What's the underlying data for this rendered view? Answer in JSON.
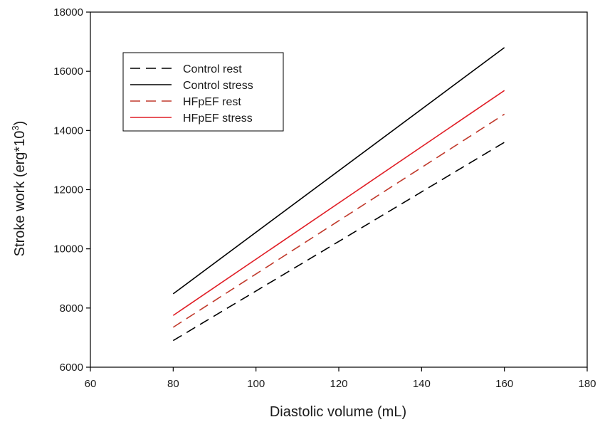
{
  "chart_data": {
    "type": "line",
    "xlabel": "Diastolic volume (mL)",
    "ylabel": "Stroke work (erg*10",
    "ylabel_superscript": "3",
    "ylabel_close": ")",
    "xlim": [
      60,
      180
    ],
    "ylim": [
      6000,
      18000
    ],
    "xticks": [
      60,
      80,
      100,
      120,
      140,
      160,
      180
    ],
    "yticks": [
      6000,
      8000,
      10000,
      12000,
      14000,
      16000,
      18000
    ],
    "grid": false,
    "legend_position": "top-left",
    "series": [
      {
        "name": "Control rest",
        "x": [
          80,
          160
        ],
        "y": [
          6900,
          13600
        ],
        "color": "#000000",
        "dash": "dashed"
      },
      {
        "name": "Control stress",
        "x": [
          80,
          160
        ],
        "y": [
          8480,
          16800
        ],
        "color": "#000000",
        "dash": "solid"
      },
      {
        "name": "HFpEF rest",
        "x": [
          80,
          160
        ],
        "y": [
          7350,
          14550
        ],
        "color": "#c0392b",
        "dash": "dashed"
      },
      {
        "name": "HFpEF stress",
        "x": [
          80,
          160
        ],
        "y": [
          7750,
          15350
        ],
        "color": "#e01e26",
        "dash": "solid"
      }
    ]
  }
}
